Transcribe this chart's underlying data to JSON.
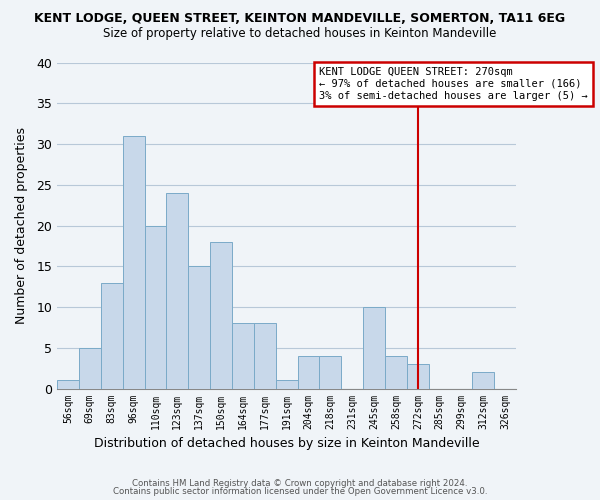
{
  "title": "KENT LODGE, QUEEN STREET, KEINTON MANDEVILLE, SOMERTON, TA11 6EG",
  "subtitle": "Size of property relative to detached houses in Keinton Mandeville",
  "xlabel": "Distribution of detached houses by size in Keinton Mandeville",
  "ylabel": "Number of detached properties",
  "bin_labels": [
    "56sqm",
    "69sqm",
    "83sqm",
    "96sqm",
    "110sqm",
    "123sqm",
    "137sqm",
    "150sqm",
    "164sqm",
    "177sqm",
    "191sqm",
    "204sqm",
    "218sqm",
    "231sqm",
    "245sqm",
    "258sqm",
    "272sqm",
    "285sqm",
    "299sqm",
    "312sqm",
    "326sqm"
  ],
  "bar_heights": [
    1,
    5,
    13,
    31,
    20,
    24,
    15,
    18,
    8,
    8,
    1,
    4,
    4,
    0,
    10,
    4,
    3,
    0,
    0,
    2,
    0
  ],
  "bar_color": "#c8d8ea",
  "bar_edgecolor": "#7aaac8",
  "ylim": [
    0,
    40
  ],
  "yticks": [
    0,
    5,
    10,
    15,
    20,
    25,
    30,
    35,
    40
  ],
  "vline_x_index": 16,
  "vline_color": "#cc0000",
  "annotation_title": "KENT LODGE QUEEN STREET: 270sqm",
  "annotation_line1": "← 97% of detached houses are smaller (166)",
  "annotation_line2": "3% of semi-detached houses are larger (5) →",
  "annotation_box_color": "#cc0000",
  "annotation_bg_color": "#ffffff",
  "footer1": "Contains HM Land Registry data © Crown copyright and database right 2024.",
  "footer2": "Contains public sector information licensed under the Open Government Licence v3.0.",
  "bg_color": "#f0f4f8",
  "grid_color": "#b8c8d8"
}
